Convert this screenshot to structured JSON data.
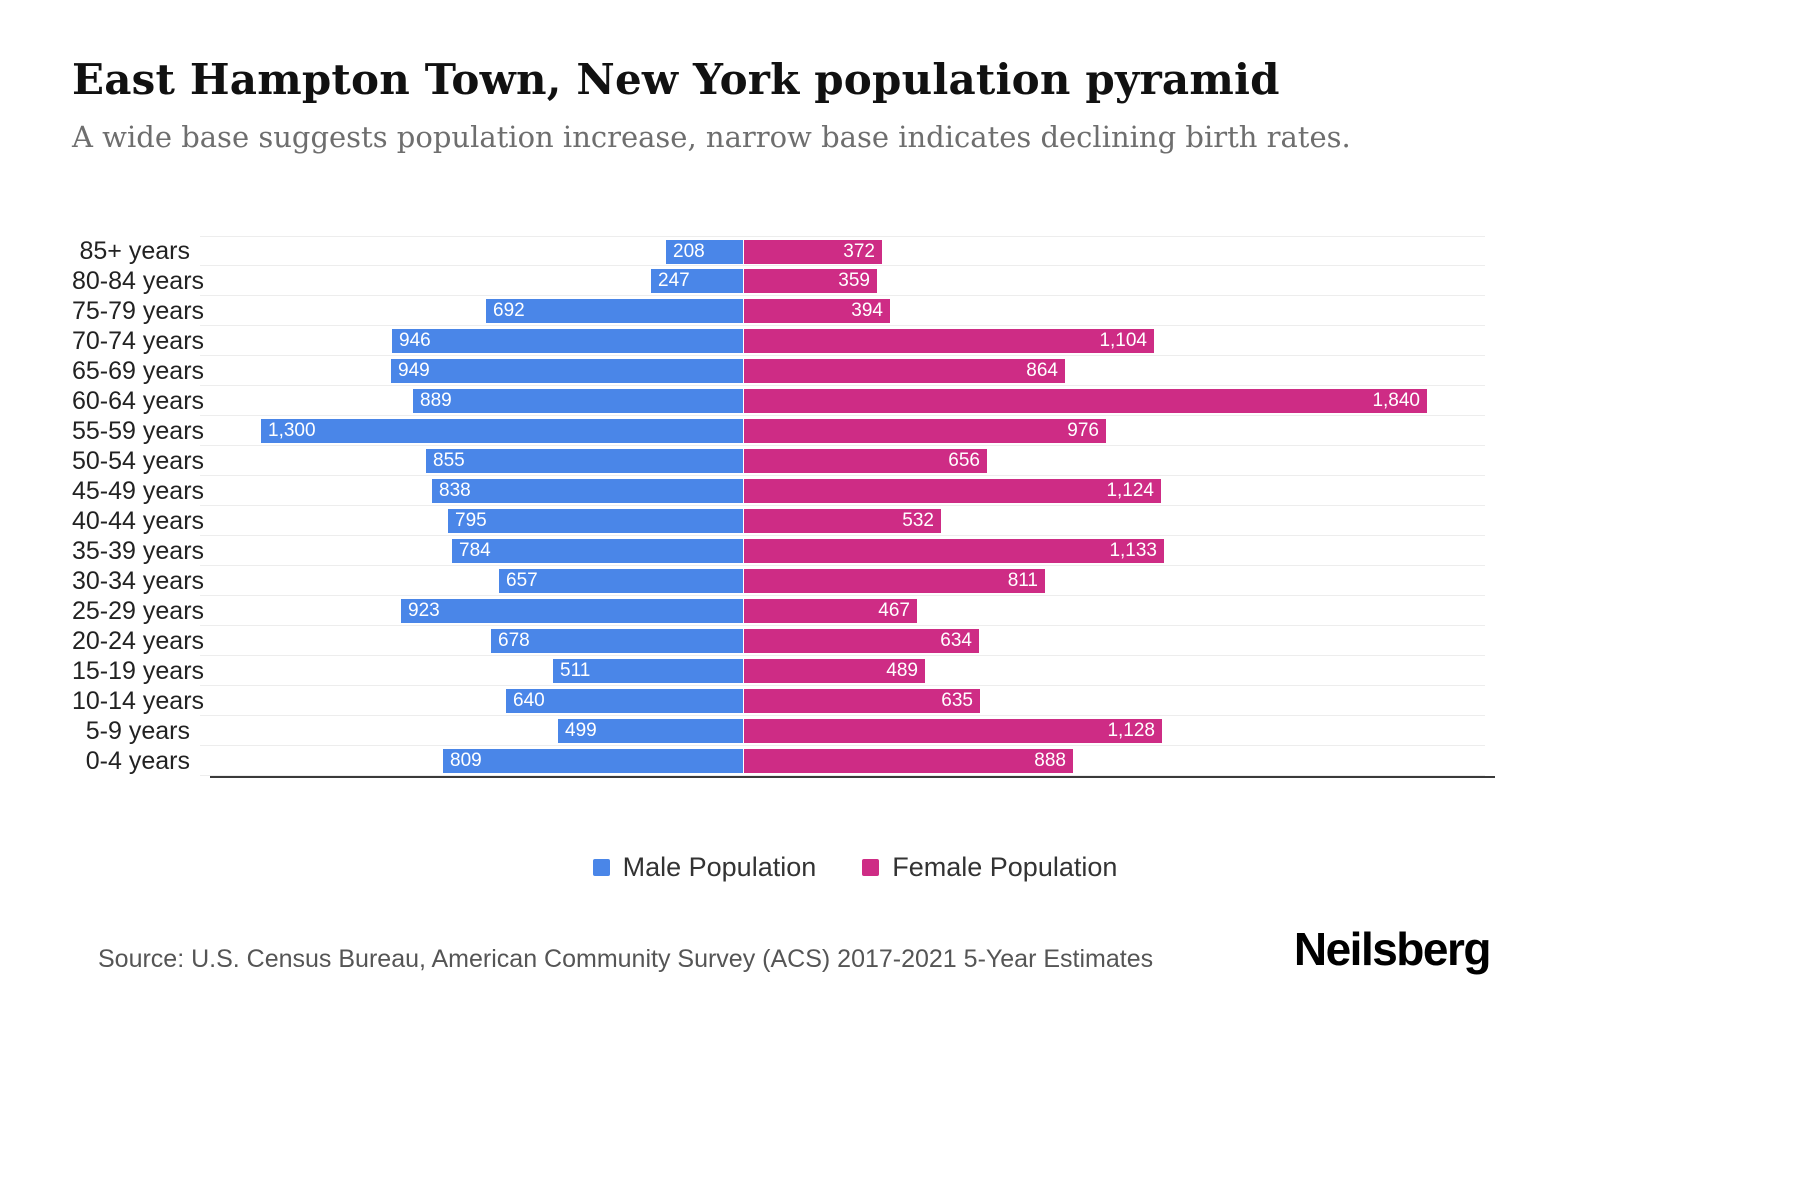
{
  "header": {
    "title": "East Hampton Town, New York population pyramid",
    "subtitle": "A wide base suggests population increase, narrow base indicates declining birth rates."
  },
  "chart_data": {
    "type": "bar",
    "variant": "population-pyramid",
    "orientation": "horizontal",
    "grid": true,
    "legend_position": "bottom",
    "axis_max": 2000,
    "categories": [
      "85+ years",
      "80-84 years",
      "75-79 years",
      "70-74 years",
      "65-69 years",
      "60-64 years",
      "55-59 years",
      "50-54 years",
      "45-49 years",
      "40-44 years",
      "35-39 years",
      "30-34 years",
      "25-29 years",
      "20-24 years",
      "15-19 years",
      "10-14 years",
      "5-9 years",
      "0-4 years"
    ],
    "series": [
      {
        "name": "Male Population",
        "side": "left",
        "color": "#4a86e8",
        "values": [
          208,
          247,
          692,
          946,
          949,
          889,
          1300,
          855,
          838,
          795,
          784,
          657,
          923,
          678,
          511,
          640,
          499,
          809
        ]
      },
      {
        "name": "Female Population",
        "side": "right",
        "color": "#ce2c85",
        "values": [
          372,
          359,
          394,
          1104,
          864,
          1840,
          976,
          656,
          1124,
          532,
          1133,
          811,
          467,
          634,
          489,
          635,
          1128,
          888
        ]
      }
    ]
  },
  "footer": {
    "source": "Source: U.S. Census Bureau, American Community Survey (ACS) 2017-2021 5-Year Estimates",
    "logo": "Neilsberg"
  }
}
